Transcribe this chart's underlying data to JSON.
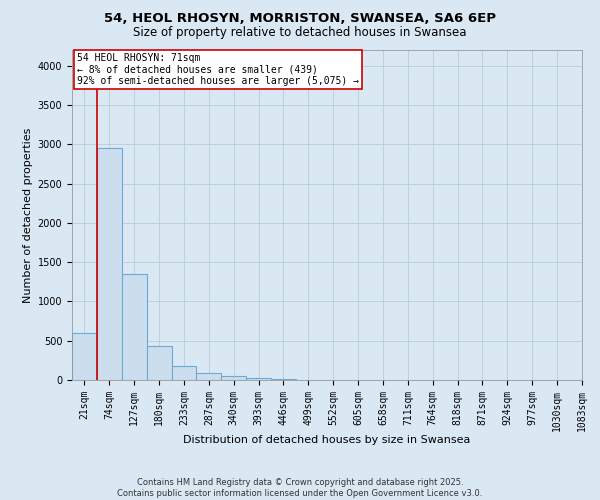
{
  "title_line1": "54, HEOL RHOSYN, MORRISTON, SWANSEA, SA6 6EP",
  "title_line2": "Size of property relative to detached houses in Swansea",
  "xlabel": "Distribution of detached houses by size in Swansea",
  "ylabel": "Number of detached properties",
  "bar_values": [
    600,
    2950,
    1350,
    430,
    175,
    90,
    50,
    25,
    12,
    6,
    3,
    2,
    1,
    1,
    0,
    0,
    0,
    0,
    0,
    0
  ],
  "bar_labels": [
    "21sqm",
    "74sqm",
    "127sqm",
    "180sqm",
    "233sqm",
    "287sqm",
    "340sqm",
    "393sqm",
    "446sqm",
    "499sqm",
    "552sqm",
    "605sqm",
    "658sqm",
    "711sqm",
    "764sqm",
    "818sqm",
    "871sqm",
    "924sqm",
    "977sqm",
    "1030sqm",
    "1083sqm"
  ],
  "bar_color": "#ccdded",
  "bar_edgecolor": "#6aaad4",
  "bar_linewidth": 0.8,
  "annotation_text": "54 HEOL RHOSYN: 71sqm\n← 8% of detached houses are smaller (439)\n92% of semi-detached houses are larger (5,075) →",
  "annotation_box_color": "#ffffff",
  "annotation_box_edgecolor": "#cc0000",
  "redline_color": "#cc0000",
  "redline_x": 1,
  "ylim": [
    0,
    4200
  ],
  "yticks": [
    0,
    500,
    1000,
    1500,
    2000,
    2500,
    3000,
    3500,
    4000
  ],
  "grid_color": "#b8ccd8",
  "background_color": "#dae8f4",
  "plot_background": "#dae8f4",
  "footer": "Contains HM Land Registry data © Crown copyright and database right 2025.\nContains public sector information licensed under the Open Government Licence v3.0.",
  "title_fontsize": 9.5,
  "subtitle_fontsize": 8.5,
  "xlabel_fontsize": 8,
  "ylabel_fontsize": 8,
  "tick_fontsize": 7,
  "footer_fontsize": 6,
  "annot_fontsize": 7
}
